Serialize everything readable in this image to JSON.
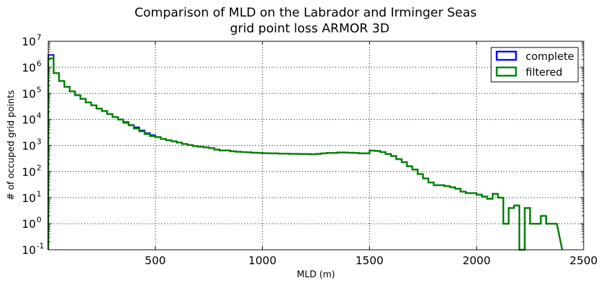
{
  "chart_data": {
    "type": "step-histogram",
    "title": [
      "Comparison of MLD on the Labrador and Irminger Seas",
      "grid point loss ARMOR 3D"
    ],
    "xlabel": "MLD (m)",
    "ylabel": "# of occuped grid points",
    "xlim": [
      0,
      2500
    ],
    "ylim": [
      0.1,
      10000000
    ],
    "yscale": "log",
    "grid": true,
    "legend_position": "top-right",
    "x_ticks": [
      {
        "value": 500,
        "label": "500"
      },
      {
        "value": 1000,
        "label": "1000"
      },
      {
        "value": 1500,
        "label": "1500"
      },
      {
        "value": 2000,
        "label": "2000"
      },
      {
        "value": 2500,
        "label": "2500"
      }
    ],
    "y_ticks": [
      {
        "value": 0.1,
        "base": "10",
        "exp": "-1"
      },
      {
        "value": 1,
        "base": "10",
        "exp": "0"
      },
      {
        "value": 10,
        "base": "10",
        "exp": "1"
      },
      {
        "value": 100,
        "base": "10",
        "exp": "2"
      },
      {
        "value": 1000,
        "base": "10",
        "exp": "3"
      },
      {
        "value": 10000,
        "base": "10",
        "exp": "4"
      },
      {
        "value": 100000,
        "base": "10",
        "exp": "5"
      },
      {
        "value": 1000000,
        "base": "10",
        "exp": "6"
      },
      {
        "value": 10000000,
        "base": "10",
        "exp": "7"
      }
    ],
    "bin_edges": [
      0,
      25,
      50,
      75,
      100,
      125,
      150,
      175,
      200,
      225,
      250,
      275,
      300,
      325,
      350,
      375,
      400,
      425,
      450,
      475,
      500,
      525,
      550,
      575,
      600,
      625,
      650,
      675,
      700,
      725,
      750,
      775,
      800,
      825,
      850,
      875,
      900,
      925,
      950,
      975,
      1000,
      1025,
      1050,
      1075,
      1100,
      1125,
      1150,
      1175,
      1200,
      1225,
      1250,
      1275,
      1300,
      1325,
      1350,
      1375,
      1400,
      1425,
      1450,
      1475,
      1500,
      1525,
      1550,
      1575,
      1600,
      1625,
      1650,
      1675,
      1700,
      1725,
      1750,
      1775,
      1800,
      1825,
      1850,
      1875,
      1900,
      1925,
      1950,
      1975,
      2000,
      2025,
      2050,
      2075,
      2100,
      2125,
      2150,
      2175,
      2200,
      2225,
      2250,
      2275,
      2300,
      2325,
      2350,
      2375
    ],
    "series": [
      {
        "name": "complete",
        "color": "#0000ff",
        "counts": [
          3000000,
          600000,
          300000,
          180000,
          120000,
          85000,
          62000,
          45000,
          35000,
          26000,
          21000,
          16000,
          12500,
          10000,
          8000,
          6200,
          5000,
          3800,
          3000,
          2500,
          2100,
          1800,
          1600,
          1450,
          1300,
          1150,
          1050,
          950,
          900,
          850,
          800,
          700,
          650,
          650,
          600,
          580,
          560,
          550,
          530,
          520,
          510,
          500,
          500,
          490,
          490,
          480,
          480,
          470,
          470,
          460,
          480,
          500,
          520,
          520,
          540,
          540,
          530,
          520,
          500,
          500,
          640,
          620,
          560,
          470,
          400,
          300,
          230,
          160,
          120,
          80,
          55,
          38,
          30,
          30,
          28,
          25,
          22,
          17,
          15,
          15,
          13,
          11,
          9,
          14,
          10,
          1,
          4,
          5,
          0.05,
          4,
          1,
          1,
          2,
          1,
          1
        ],
        "width": 2
      },
      {
        "name": "filtered",
        "color": "#008000",
        "counts": [
          2200000,
          600000,
          300000,
          180000,
          120000,
          85000,
          62000,
          45000,
          35000,
          26000,
          21000,
          16000,
          12500,
          10000,
          7500,
          6000,
          4500,
          3500,
          2800,
          2300,
          2100,
          1800,
          1600,
          1450,
          1300,
          1150,
          1050,
          950,
          900,
          850,
          800,
          700,
          650,
          650,
          600,
          580,
          560,
          550,
          530,
          520,
          510,
          500,
          500,
          490,
          490,
          480,
          480,
          470,
          470,
          460,
          480,
          500,
          520,
          520,
          540,
          540,
          530,
          520,
          500,
          500,
          640,
          620,
          560,
          470,
          400,
          300,
          230,
          160,
          120,
          80,
          55,
          38,
          30,
          30,
          28,
          25,
          22,
          17,
          15,
          15,
          13,
          11,
          9,
          14,
          10,
          1,
          4,
          5,
          0.05,
          4,
          1,
          1,
          2,
          1,
          1
        ],
        "width": 2.5
      }
    ]
  }
}
